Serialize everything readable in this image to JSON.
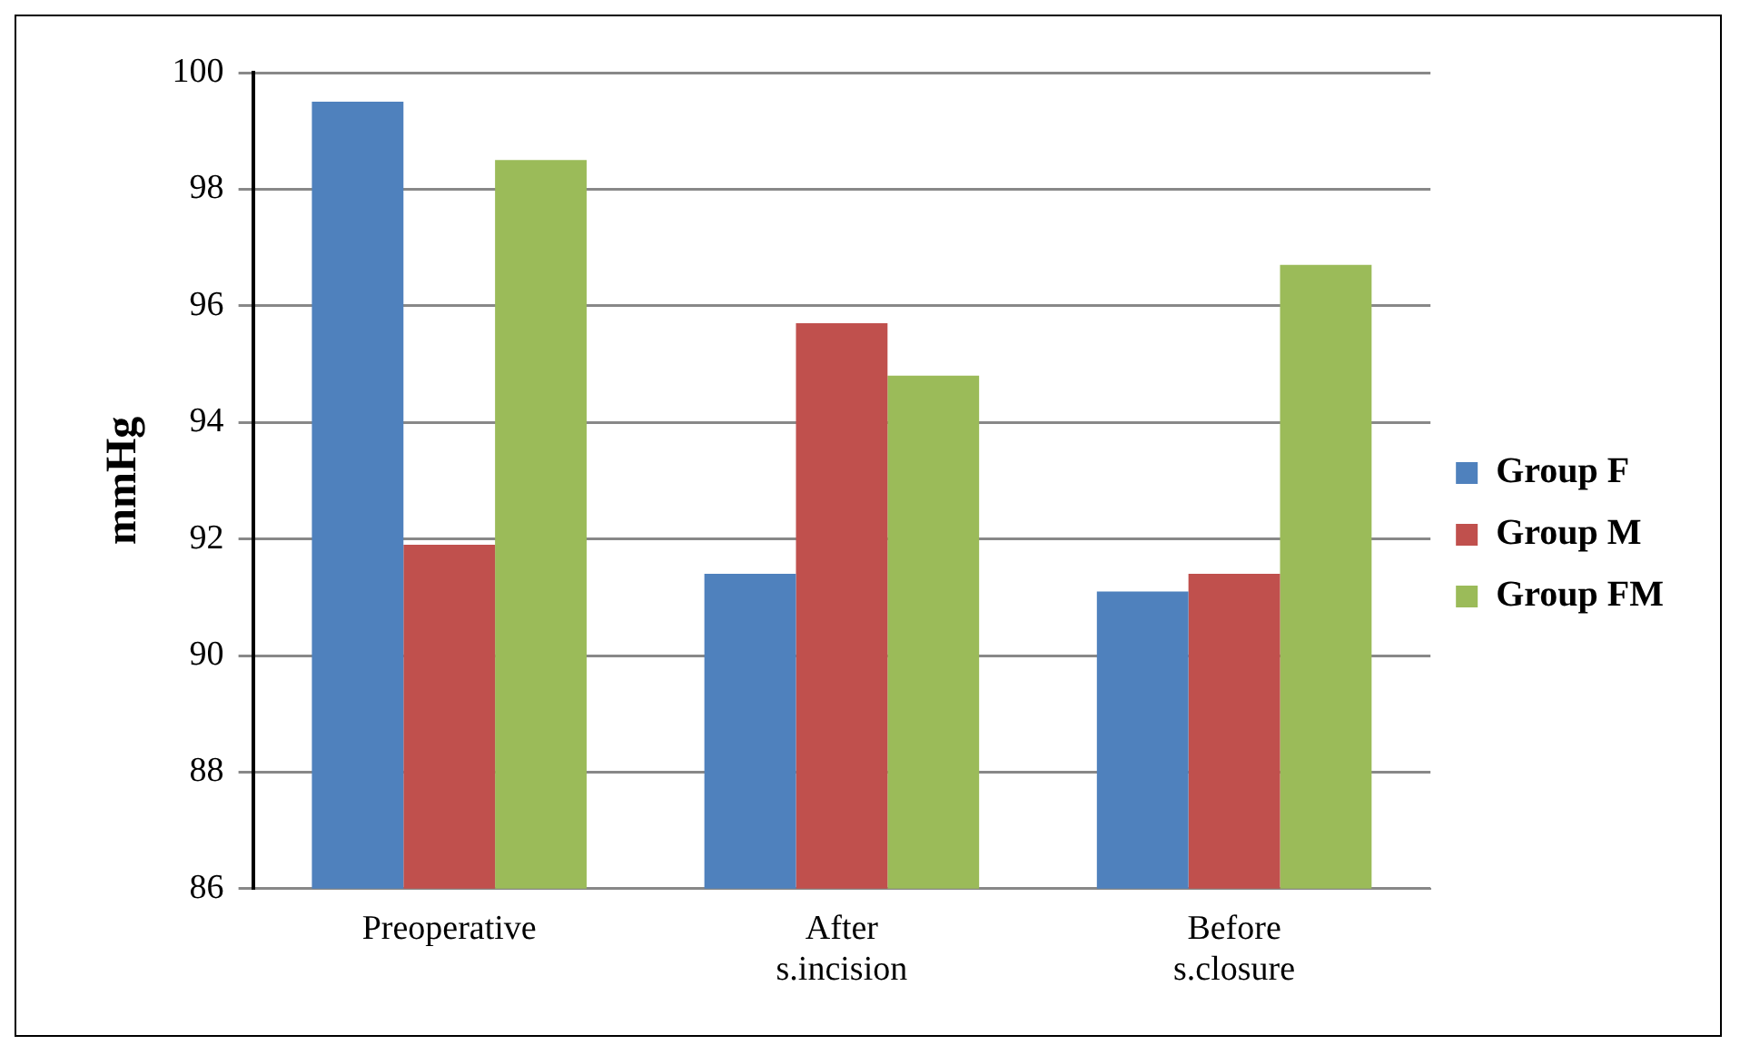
{
  "chart_data": {
    "type": "bar",
    "ylabel": "mmHg",
    "categories": [
      "Preoperative",
      "After s.incision",
      "Before s.closure"
    ],
    "series": [
      {
        "name": "Group F",
        "color": "#4f81bd",
        "values": [
          99.5,
          91.4,
          91.1
        ]
      },
      {
        "name": "Group M",
        "color": "#c0504d",
        "values": [
          91.9,
          95.7,
          91.4
        ]
      },
      {
        "name": "Group FM",
        "color": "#9bbb59",
        "values": [
          98.5,
          94.8,
          96.7
        ]
      }
    ],
    "ylim": [
      86,
      100
    ],
    "yticks": [
      86,
      88,
      90,
      92,
      94,
      96,
      98,
      100
    ],
    "grid": "y",
    "legend": "right"
  }
}
